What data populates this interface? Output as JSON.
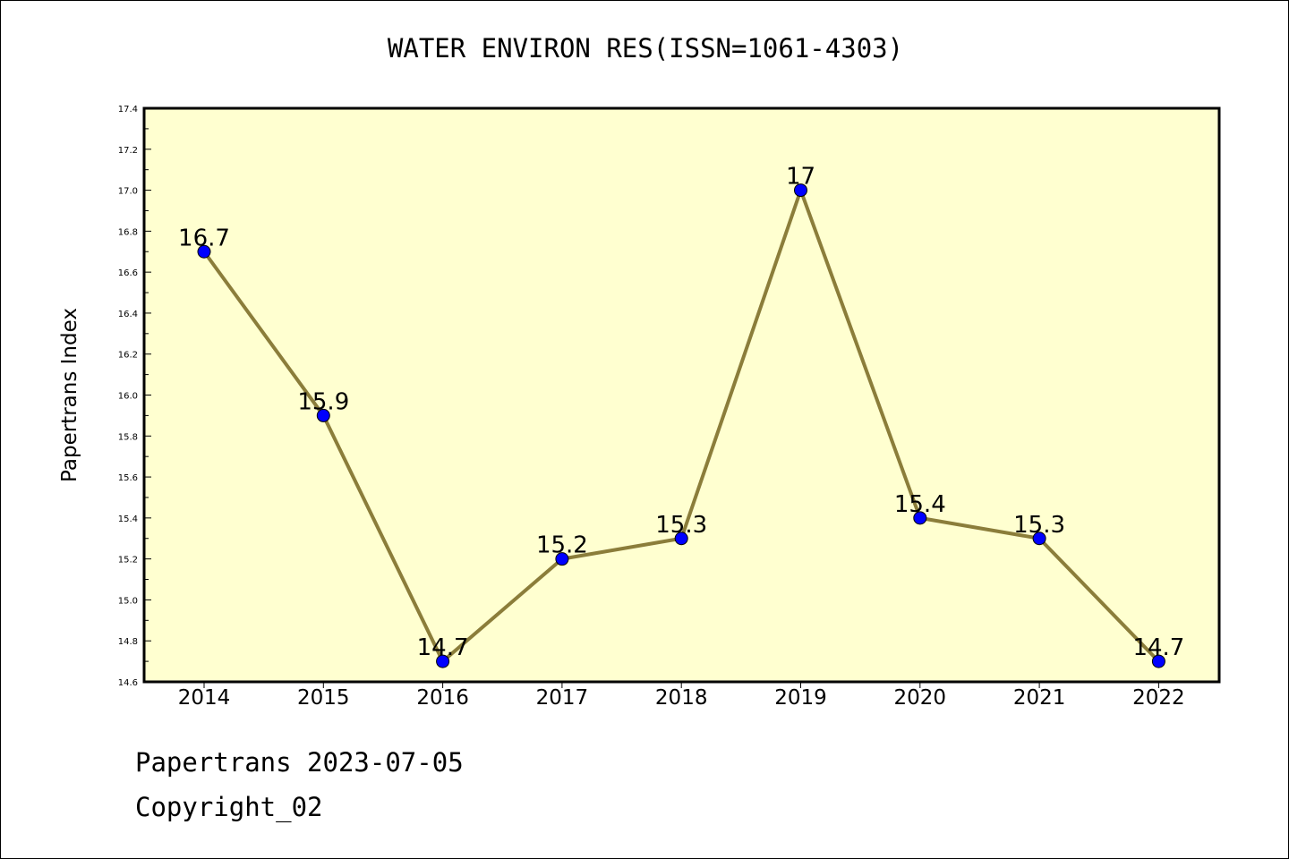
{
  "title": "WATER ENVIRON RES(ISSN=1061-4303)",
  "footer": {
    "line1": "Papertrans 2023-07-05",
    "line2": "Copyright_02"
  },
  "colors": {
    "plot_background": "#ffffd0",
    "line": "#8b7d3a",
    "marker": "#0000ff",
    "frame": "#000000"
  },
  "chart_data": {
    "type": "line",
    "title": "WATER ENVIRON RES(ISSN=1061-4303)",
    "xlabel": "",
    "ylabel": "Papertrans Index",
    "categories": [
      "2014",
      "2015",
      "2016",
      "2017",
      "2018",
      "2019",
      "2020",
      "2021",
      "2022"
    ],
    "values": [
      16.7,
      15.9,
      14.7,
      15.2,
      15.3,
      17.0,
      15.4,
      15.3,
      14.7
    ],
    "data_labels": [
      "16.7",
      "15.9",
      "14.7",
      "15.2",
      "15.3",
      "17",
      "15.4",
      "15.3",
      "14.7"
    ],
    "ylim": [
      14.6,
      17.4
    ],
    "yticks": [
      "14.6",
      "14.8",
      "15.0",
      "15.2",
      "15.4",
      "15.6",
      "15.8",
      "16.0",
      "16.2",
      "16.4",
      "16.6",
      "16.8",
      "17.0",
      "17.2",
      "17.4"
    ],
    "grid": false,
    "legend": "none"
  }
}
